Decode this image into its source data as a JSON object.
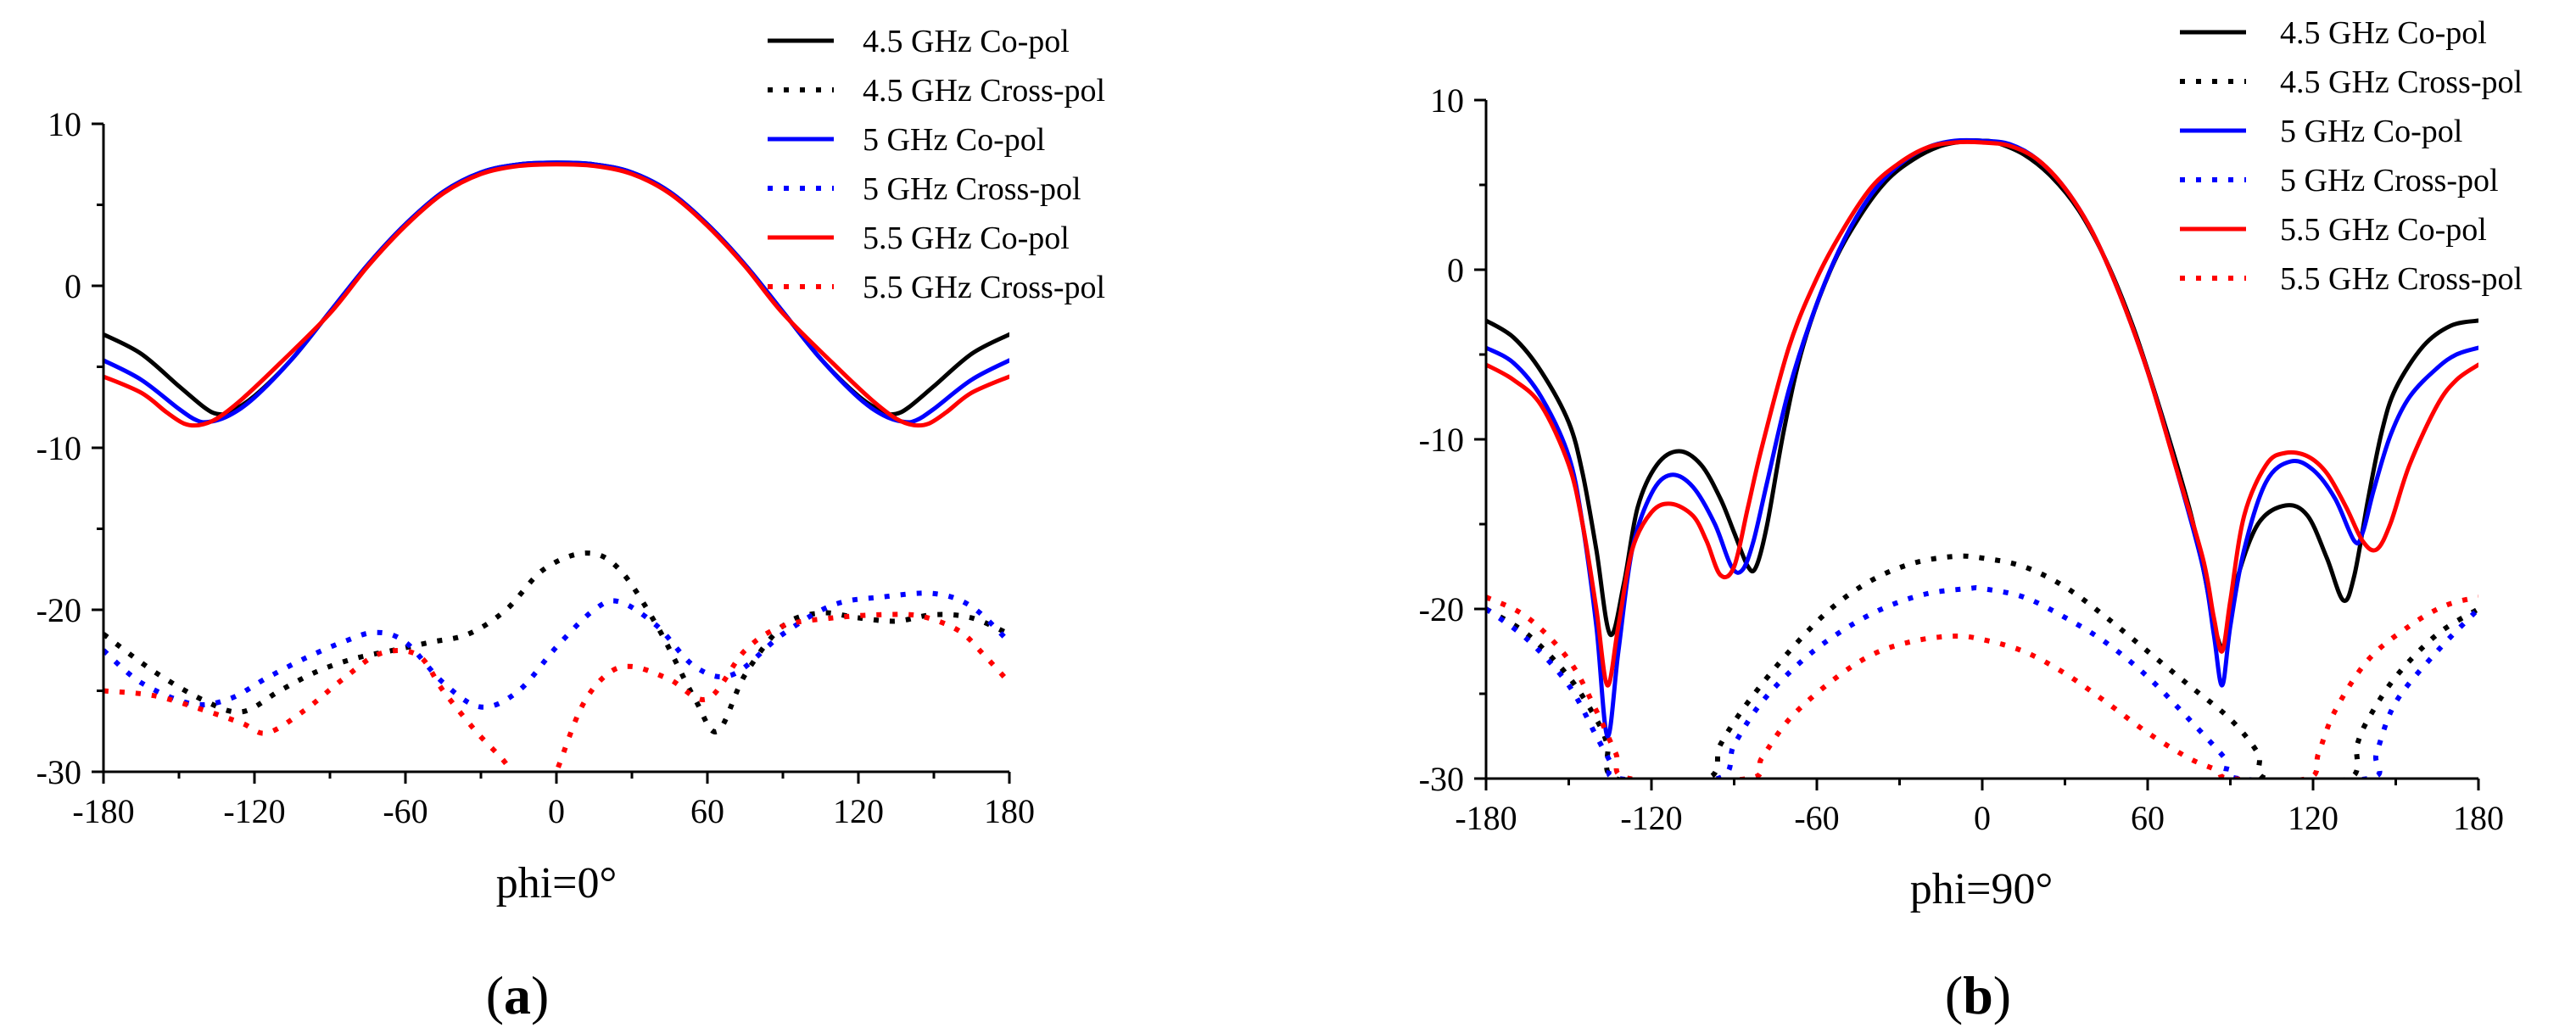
{
  "figure": {
    "panels": [
      {
        "label_open": "(",
        "label_letter": "a",
        "label_close": ")"
      },
      {
        "label_open": "(",
        "label_letter": "b",
        "label_close": ")"
      }
    ]
  },
  "chart_data": [
    {
      "type": "line",
      "xlabel": "phi=0°",
      "ylabel": "",
      "xlim": [
        -180,
        180
      ],
      "ylim": [
        -30,
        10
      ],
      "xticks": [
        -180,
        -120,
        -60,
        0,
        60,
        120,
        180
      ],
      "yticks": [
        -30,
        -20,
        -10,
        0,
        10
      ],
      "grid": false,
      "legend_position": "top-right",
      "series": [
        {
          "name": "4.5 GHz Co-pol",
          "color": "#000000",
          "dash": "solid",
          "x": [
            -180,
            -165,
            -150,
            -140,
            -135,
            -130,
            -120,
            -105,
            -90,
            -75,
            -60,
            -45,
            -30,
            -15,
            0,
            15,
            30,
            45,
            60,
            75,
            90,
            105,
            120,
            130,
            135,
            140,
            150,
            165,
            180
          ],
          "y": [
            -3.0,
            -4.2,
            -6.2,
            -7.5,
            -7.9,
            -7.8,
            -6.8,
            -4.5,
            -1.6,
            1.3,
            3.8,
            5.8,
            7.0,
            7.5,
            7.6,
            7.5,
            7.0,
            5.8,
            3.8,
            1.3,
            -1.6,
            -4.5,
            -6.8,
            -7.8,
            -7.9,
            -7.5,
            -6.2,
            -4.2,
            -3.0
          ]
        },
        {
          "name": "4.5 GHz Cross-pol",
          "color": "#000000",
          "dash": "dotted",
          "x": [
            -180,
            -160,
            -140,
            -125,
            -110,
            -95,
            -80,
            -65,
            -50,
            -35,
            -20,
            -5,
            12,
            25,
            40,
            55,
            64,
            75,
            90,
            105,
            120,
            135,
            150,
            165,
            180
          ],
          "y": [
            -21.5,
            -23.8,
            -25.6,
            -26.3,
            -25.0,
            -23.8,
            -23.0,
            -22.5,
            -22.0,
            -21.5,
            -20.0,
            -17.5,
            -16.5,
            -17.5,
            -21.0,
            -25.5,
            -27.5,
            -24.0,
            -21.0,
            -20.2,
            -20.5,
            -20.7,
            -20.3,
            -20.5,
            -21.5
          ]
        },
        {
          "name": "5 GHz Co-pol",
          "color": "#0000ff",
          "dash": "solid",
          "x": [
            -180,
            -165,
            -150,
            -143,
            -138,
            -130,
            -120,
            -105,
            -90,
            -75,
            -60,
            -45,
            -30,
            -15,
            0,
            15,
            30,
            45,
            60,
            75,
            90,
            105,
            120,
            130,
            138,
            143,
            150,
            165,
            180
          ],
          "y": [
            -4.6,
            -5.8,
            -7.6,
            -8.3,
            -8.4,
            -8.0,
            -6.9,
            -4.5,
            -1.6,
            1.3,
            3.8,
            5.8,
            7.0,
            7.5,
            7.6,
            7.5,
            7.0,
            5.8,
            3.8,
            1.3,
            -1.6,
            -4.5,
            -6.9,
            -8.0,
            -8.4,
            -8.3,
            -7.6,
            -5.8,
            -4.6
          ]
        },
        {
          "name": "5 GHz Cross-pol",
          "color": "#0000ff",
          "dash": "dotted",
          "x": [
            -180,
            -165,
            -145,
            -130,
            -115,
            -100,
            -85,
            -72,
            -60,
            -45,
            -30,
            -15,
            0,
            15,
            25,
            40,
            55,
            70,
            90,
            110,
            130,
            150,
            165,
            180
          ],
          "y": [
            -22.5,
            -24.5,
            -25.8,
            -25.5,
            -24.2,
            -23.0,
            -22.0,
            -21.4,
            -22.0,
            -24.5,
            -26.0,
            -25.0,
            -22.3,
            -20.0,
            -19.5,
            -21.0,
            -23.5,
            -24.0,
            -21.5,
            -19.7,
            -19.2,
            -19.0,
            -19.8,
            -22.0
          ]
        },
        {
          "name": "5.5 GHz Co-pol",
          "color": "#ff0000",
          "dash": "solid",
          "x": [
            -180,
            -165,
            -155,
            -148,
            -142,
            -135,
            -125,
            -110,
            -90,
            -75,
            -60,
            -45,
            -30,
            -15,
            0,
            15,
            30,
            45,
            60,
            75,
            90,
            110,
            125,
            135,
            142,
            148,
            155,
            165,
            180
          ],
          "y": [
            -5.6,
            -6.6,
            -7.8,
            -8.5,
            -8.6,
            -8.2,
            -7.0,
            -4.8,
            -1.7,
            1.2,
            3.7,
            5.7,
            6.9,
            7.4,
            7.5,
            7.4,
            6.9,
            5.7,
            3.7,
            1.2,
            -1.7,
            -4.8,
            -7.0,
            -8.2,
            -8.6,
            -8.5,
            -7.8,
            -6.6,
            -5.6
          ]
        },
        {
          "name": "5.5 GHz Cross-pol",
          "color": "#ff0000",
          "dash": "dotted",
          "x": [
            -180,
            -160,
            -140,
            -125,
            -115,
            -100,
            -85,
            -70,
            -55,
            -45,
            -32,
            -20,
            -15,
            -8,
            0,
            10,
            20,
            30,
            45,
            60,
            75,
            90,
            110,
            130,
            145,
            160,
            170,
            180
          ],
          "y": [
            -25.0,
            -25.3,
            -26.2,
            -27.0,
            -27.6,
            -26.2,
            -24.3,
            -22.7,
            -22.8,
            -25.0,
            -27.5,
            -29.5,
            -31.0,
            -33.0,
            -30.0,
            -26.0,
            -24.0,
            -23.5,
            -24.3,
            -25.5,
            -22.5,
            -21.0,
            -20.5,
            -20.3,
            -20.4,
            -21.3,
            -22.8,
            -24.5
          ]
        }
      ]
    },
    {
      "type": "line",
      "xlabel": "phi=90°",
      "ylabel": "",
      "xlim": [
        -180,
        180
      ],
      "ylim": [
        -30,
        10
      ],
      "xticks": [
        -180,
        -120,
        -60,
        0,
        60,
        120,
        180
      ],
      "yticks": [
        -30,
        -20,
        -10,
        0,
        10
      ],
      "grid": false,
      "legend_position": "top-right",
      "series": [
        {
          "name": "4.5 GHz Co-pol",
          "color": "#000000",
          "dash": "solid",
          "x": [
            -180,
            -170,
            -160,
            -150,
            -145,
            -140,
            -135,
            -130,
            -125,
            -118,
            -110,
            -102,
            -95,
            -90,
            -85,
            -82,
            -78,
            -72,
            -65,
            -55,
            -45,
            -35,
            -25,
            -15,
            -5,
            0,
            5,
            15,
            25,
            35,
            45,
            55,
            65,
            75,
            80,
            85,
            88,
            92,
            100,
            110,
            118,
            125,
            131,
            135,
            140,
            145,
            150,
            160,
            170,
            180
          ],
          "y": [
            -3.0,
            -4.0,
            -6.0,
            -9.0,
            -12.0,
            -16.5,
            -21.5,
            -18.5,
            -14.0,
            -11.5,
            -10.7,
            -11.5,
            -13.5,
            -15.5,
            -17.5,
            -17.5,
            -15.0,
            -9.5,
            -4.5,
            0.0,
            3.0,
            5.2,
            6.5,
            7.3,
            7.6,
            7.6,
            7.5,
            6.8,
            5.5,
            3.5,
            0.5,
            -3.5,
            -8.5,
            -14.0,
            -17.5,
            -21.5,
            -22.0,
            -18.5,
            -15.0,
            -13.9,
            -14.5,
            -17.0,
            -19.5,
            -18.0,
            -13.5,
            -9.5,
            -7.0,
            -4.5,
            -3.3,
            -3.0
          ]
        },
        {
          "name": "4.5 GHz Cross-pol",
          "color": "#000000",
          "dash": "dotted",
          "x": [
            -180,
            -165,
            -150,
            -140,
            -136,
            -133,
            -100,
            -95,
            -85,
            -70,
            -55,
            -40,
            -25,
            -10,
            0,
            15,
            30,
            45,
            60,
            75,
            90,
            100,
            103,
            133,
            136,
            140,
            150,
            165,
            180
          ],
          "y": [
            -20.0,
            -21.5,
            -24.0,
            -26.5,
            -28.0,
            -30.0,
            -30.0,
            -28.0,
            -25.5,
            -22.5,
            -20.0,
            -18.3,
            -17.3,
            -16.9,
            -17.0,
            -17.5,
            -18.7,
            -20.5,
            -22.5,
            -24.5,
            -26.5,
            -28.5,
            -30.0,
            -30.0,
            -28.0,
            -26.5,
            -24.0,
            -21.5,
            -20.0
          ]
        },
        {
          "name": "5 GHz Co-pol",
          "color": "#0000ff",
          "dash": "solid",
          "x": [
            -180,
            -170,
            -160,
            -150,
            -145,
            -140,
            -136,
            -132,
            -127,
            -120,
            -113,
            -105,
            -97,
            -91,
            -87,
            -83,
            -78,
            -70,
            -60,
            -50,
            -40,
            -30,
            -20,
            -10,
            0,
            10,
            20,
            30,
            40,
            50,
            60,
            70,
            80,
            84,
            87,
            90,
            95,
            103,
            112,
            120,
            128,
            135,
            138,
            142,
            148,
            155,
            165,
            172,
            180
          ],
          "y": [
            -4.6,
            -5.5,
            -7.5,
            -11.0,
            -15.0,
            -21.0,
            -27.5,
            -22.5,
            -16.5,
            -13.2,
            -12.1,
            -12.8,
            -15.0,
            -17.5,
            -17.7,
            -16.0,
            -12.5,
            -7.0,
            -2.0,
            1.8,
            4.5,
            6.2,
            7.2,
            7.6,
            7.6,
            7.4,
            6.5,
            4.8,
            2.2,
            -1.5,
            -6.0,
            -11.5,
            -17.5,
            -21.5,
            -24.5,
            -21.0,
            -16.5,
            -12.5,
            -11.3,
            -11.8,
            -13.5,
            -16.0,
            -15.5,
            -13.0,
            -9.8,
            -7.5,
            -5.8,
            -5.0,
            -4.6
          ]
        },
        {
          "name": "5 GHz Cross-pol",
          "color": "#0000ff",
          "dash": "dotted",
          "x": [
            -180,
            -165,
            -150,
            -140,
            -135,
            -132,
            -96,
            -90,
            -80,
            -65,
            -50,
            -35,
            -20,
            -5,
            0,
            15,
            30,
            45,
            60,
            75,
            88,
            93,
            140,
            143,
            150,
            165,
            180
          ],
          "y": [
            -20.0,
            -21.8,
            -24.5,
            -27.5,
            -29.0,
            -30.0,
            -30.0,
            -28.0,
            -25.5,
            -23.0,
            -21.2,
            -19.9,
            -19.1,
            -18.8,
            -18.8,
            -19.3,
            -20.5,
            -22.0,
            -24.0,
            -26.5,
            -28.8,
            -30.0,
            -30.0,
            -28.5,
            -25.5,
            -22.5,
            -20.0
          ]
        },
        {
          "name": "5.5 GHz Co-pol",
          "color": "#ff0000",
          "dash": "solid",
          "x": [
            -180,
            -170,
            -160,
            -150,
            -145,
            -140,
            -136,
            -132,
            -127,
            -120,
            -113,
            -105,
            -100,
            -95,
            -90,
            -85,
            -80,
            -70,
            -60,
            -50,
            -40,
            -30,
            -20,
            -10,
            0,
            10,
            20,
            30,
            40,
            50,
            60,
            70,
            80,
            84,
            87,
            90,
            95,
            103,
            110,
            118,
            125,
            132,
            138,
            143,
            148,
            155,
            165,
            172,
            180
          ],
          "y": [
            -5.6,
            -6.5,
            -8.0,
            -11.5,
            -15.0,
            -20.0,
            -24.5,
            -21.0,
            -16.5,
            -14.3,
            -13.8,
            -14.5,
            -16.0,
            -18.0,
            -17.5,
            -14.0,
            -10.5,
            -4.5,
            -0.5,
            2.5,
            4.9,
            6.3,
            7.2,
            7.5,
            7.5,
            7.3,
            6.5,
            4.8,
            2.2,
            -1.5,
            -6.0,
            -11.5,
            -17.0,
            -20.5,
            -22.5,
            -19.5,
            -14.5,
            -11.5,
            -10.8,
            -11.0,
            -12.0,
            -14.0,
            -16.0,
            -16.5,
            -15.0,
            -11.5,
            -8.0,
            -6.5,
            -5.6
          ]
        },
        {
          "name": "5.5 GHz Cross-pol",
          "color": "#ff0000",
          "dash": "dotted",
          "x": [
            -180,
            -165,
            -150,
            -140,
            -133,
            -128,
            -85,
            -80,
            -70,
            -55,
            -40,
            -25,
            -10,
            0,
            15,
            30,
            45,
            60,
            75,
            85,
            90,
            118,
            122,
            128,
            140,
            155,
            168,
            180
          ],
          "y": [
            -19.3,
            -20.5,
            -23.0,
            -26.0,
            -28.5,
            -30.0,
            -30.0,
            -28.8,
            -26.5,
            -24.3,
            -22.7,
            -21.9,
            -21.6,
            -21.8,
            -22.5,
            -23.8,
            -25.5,
            -27.3,
            -28.8,
            -29.5,
            -30.0,
            -30.0,
            -28.5,
            -26.0,
            -23.0,
            -21.0,
            -19.8,
            -19.3
          ]
        }
      ]
    }
  ]
}
